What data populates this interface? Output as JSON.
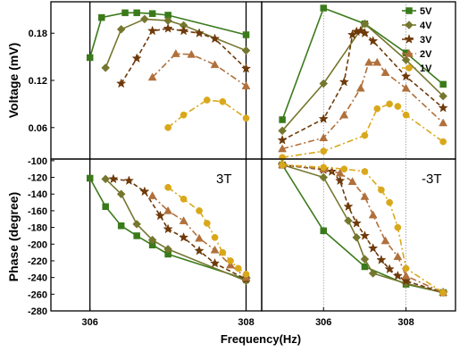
{
  "chart_data": [
    {
      "panel": "voltage-left",
      "type": "line",
      "ylabel": "Voltage (mV)",
      "xlim": [
        305.5,
        308.2
      ],
      "ylim": [
        0.02,
        0.22
      ],
      "yticks": [
        "0.06",
        "0.12",
        "0.18"
      ],
      "ytick_values": [
        0.06,
        0.12,
        0.18
      ],
      "vlines": [
        306,
        308
      ],
      "series": [
        {
          "name": "5V",
          "x": [
            306.0,
            306.15,
            306.45,
            306.6,
            306.8,
            307.0,
            308.0
          ],
          "y": [
            0.149,
            0.2,
            0.206,
            0.206,
            0.205,
            0.203,
            0.178
          ]
        },
        {
          "name": "4V",
          "x": [
            306.2,
            306.4,
            306.7,
            307.0,
            307.2,
            308.0
          ],
          "y": [
            0.136,
            0.185,
            0.198,
            0.196,
            0.19,
            0.158
          ]
        },
        {
          "name": "3V",
          "x": [
            306.4,
            306.6,
            306.8,
            307.0,
            307.2,
            307.4,
            307.6,
            308.0
          ],
          "y": [
            0.116,
            0.148,
            0.183,
            0.186,
            0.183,
            0.18,
            0.173,
            0.135
          ]
        },
        {
          "name": "2V",
          "x": [
            306.8,
            307.1,
            307.3,
            307.6,
            308.0
          ],
          "y": [
            0.124,
            0.154,
            0.153,
            0.14,
            0.113
          ]
        },
        {
          "name": "1V",
          "x": [
            307.0,
            307.2,
            307.5,
            307.7,
            308.0
          ],
          "y": [
            0.06,
            0.076,
            0.095,
            0.093,
            0.072
          ]
        }
      ]
    },
    {
      "panel": "voltage-right",
      "type": "line",
      "xlim": [
        304.5,
        309.2
      ],
      "ylim": [
        0.02,
        0.22
      ],
      "vlines": [
        306,
        308
      ],
      "legend_position": "top-right",
      "series": [
        {
          "name": "5V",
          "x": [
            305.0,
            306.0,
            307.0,
            308.0,
            308.9
          ],
          "y": [
            0.07,
            0.212,
            0.192,
            0.155,
            0.115
          ]
        },
        {
          "name": "4V",
          "x": [
            305.0,
            306.0,
            307.0,
            308.0,
            308.9
          ],
          "y": [
            0.056,
            0.116,
            0.192,
            0.146,
            0.1
          ]
        },
        {
          "name": "3V",
          "x": [
            305.0,
            306.0,
            306.5,
            306.7,
            306.8,
            306.9,
            307.0,
            307.2,
            308.0,
            308.9
          ],
          "y": [
            0.044,
            0.071,
            0.118,
            0.178,
            0.182,
            0.183,
            0.18,
            0.17,
            0.125,
            0.085
          ]
        },
        {
          "name": "2V",
          "x": [
            305.0,
            306.0,
            306.5,
            306.9,
            307.1,
            307.3,
            307.5,
            308.0,
            308.9
          ],
          "y": [
            0.033,
            0.047,
            0.076,
            0.11,
            0.143,
            0.143,
            0.13,
            0.11,
            0.066
          ]
        },
        {
          "name": "1V",
          "x": [
            305.0,
            306.0,
            307.0,
            307.3,
            307.6,
            307.8,
            308.0,
            308.9
          ],
          "y": [
            0.022,
            0.03,
            0.05,
            0.084,
            0.09,
            0.087,
            0.076,
            0.042
          ]
        }
      ]
    },
    {
      "panel": "phase-left",
      "type": "line",
      "ylabel": "Phase (degree)",
      "xlabel": "Frequency(Hz)",
      "xlim": [
        305.5,
        308.2
      ],
      "ylim": [
        -280,
        -98
      ],
      "yticks": [
        "-100",
        "-120",
        "-140",
        "-160",
        "-180",
        "-200",
        "-220",
        "-240",
        "-260",
        "-280"
      ],
      "ytick_values": [
        -100,
        -120,
        -140,
        -160,
        -180,
        -200,
        -220,
        -240,
        -260,
        -280
      ],
      "xticks": [
        "306",
        "308"
      ],
      "xtick_values": [
        306,
        308
      ],
      "vlines": [
        306,
        308
      ],
      "annotation": "3T",
      "series": [
        {
          "name": "5V",
          "x": [
            306.0,
            306.2,
            306.4,
            306.6,
            306.8,
            307.0,
            308.0
          ],
          "y": [
            -121,
            -155,
            -178,
            -190,
            -201,
            -212,
            -242
          ]
        },
        {
          "name": "4V",
          "x": [
            306.2,
            306.4,
            306.6,
            306.8,
            307.0,
            308.0
          ],
          "y": [
            -122,
            -140,
            -176,
            -195,
            -206,
            -244
          ]
        },
        {
          "name": "3V",
          "x": [
            306.3,
            306.5,
            306.7,
            306.9,
            307.0,
            307.2,
            307.4,
            307.6,
            308.0
          ],
          "y": [
            -122,
            -124,
            -137,
            -166,
            -182,
            -192,
            -208,
            -223,
            -242
          ]
        },
        {
          "name": "2V",
          "x": [
            306.8,
            307.0,
            307.2,
            307.4,
            307.6,
            307.8,
            308.0
          ],
          "y": [
            -142,
            -160,
            -172,
            -193,
            -207,
            -225,
            -240
          ]
        },
        {
          "name": "1V",
          "x": [
            307.0,
            307.2,
            307.4,
            307.5,
            307.6,
            307.7,
            307.8,
            307.9,
            308.0
          ],
          "y": [
            -132,
            -146,
            -160,
            -175,
            -192,
            -210,
            -220,
            -229,
            -236
          ]
        }
      ]
    },
    {
      "panel": "phase-right",
      "type": "line",
      "xlim": [
        304.5,
        309.2
      ],
      "ylim": [
        -280,
        -98
      ],
      "xticks": [
        "306",
        "308"
      ],
      "xtick_values": [
        306,
        308
      ],
      "vlines": [
        306,
        308
      ],
      "annotation": "-3T",
      "series": [
        {
          "name": "5V",
          "x": [
            305.0,
            306.0,
            307.0,
            308.0,
            308.9
          ],
          "y": [
            -105,
            -184,
            -227,
            -248,
            -258
          ]
        },
        {
          "name": "4V",
          "x": [
            305.0,
            306.0,
            306.6,
            306.8,
            307.0,
            307.2,
            308.0,
            308.9
          ],
          "y": [
            -105,
            -120,
            -172,
            -192,
            -218,
            -235,
            -247,
            -258
          ]
        },
        {
          "name": "3V",
          "x": [
            305.0,
            306.0,
            306.2,
            306.4,
            306.6,
            306.8,
            307.0,
            307.2,
            307.4,
            307.6,
            307.8,
            308.0,
            308.9
          ],
          "y": [
            -105,
            -111,
            -113,
            -124,
            -155,
            -175,
            -190,
            -205,
            -219,
            -230,
            -238,
            -244,
            -258
          ]
        },
        {
          "name": "2V",
          "x": [
            305.0,
            306.0,
            306.4,
            306.7,
            307.0,
            307.2,
            307.5,
            307.8,
            308.0,
            308.9
          ],
          "y": [
            -105,
            -110,
            -115,
            -125,
            -143,
            -165,
            -196,
            -215,
            -238,
            -258
          ]
        },
        {
          "name": "1V",
          "x": [
            305.0,
            306.0,
            306.5,
            307.0,
            307.4,
            307.6,
            307.8,
            308.0,
            308.9
          ],
          "y": [
            -105,
            -108,
            -110,
            -113,
            -135,
            -150,
            -180,
            -229,
            -258
          ]
        }
      ]
    }
  ],
  "legend": [
    {
      "label": "5V",
      "marker": "square",
      "color": "#3a7a1a"
    },
    {
      "label": "4V",
      "marker": "diamond",
      "color": "#75772e"
    },
    {
      "label": "3V",
      "marker": "star",
      "color": "#6e3a0a"
    },
    {
      "label": "2V",
      "marker": "triangle",
      "color": "#b0703c"
    },
    {
      "label": "1V",
      "marker": "circle",
      "color": "#d9a81a"
    }
  ],
  "colors": {
    "5V": "#3a7a1a",
    "4V": "#75772e",
    "3V": "#6e3a0a",
    "2V": "#b0703c",
    "1V": "#d9a81a"
  },
  "line_styles": {
    "5V": "solid",
    "4V": "solid",
    "3V": "dash",
    "2V": "dashdot",
    "1V": "dashdot"
  }
}
